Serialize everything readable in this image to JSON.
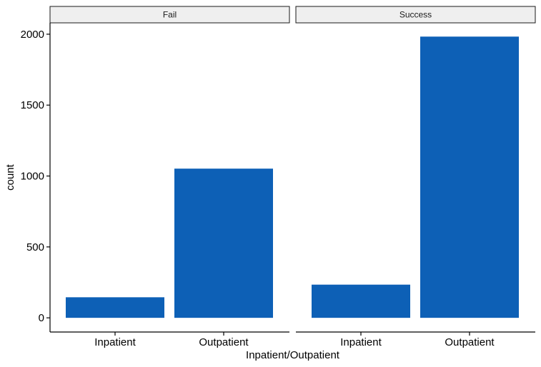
{
  "chart_data": {
    "type": "bar",
    "facets": [
      "Fail",
      "Success"
    ],
    "categories": [
      "Inpatient",
      "Outpatient"
    ],
    "series": [
      {
        "facet": "Fail",
        "values": [
          145,
          1052
        ]
      },
      {
        "facet": "Success",
        "values": [
          234,
          1983
        ]
      }
    ],
    "y_ticks": [
      0,
      500,
      1000,
      1500,
      2000
    ],
    "y_tick_labels": [
      "0",
      "500",
      "1000",
      "1500",
      "2000"
    ],
    "ylim": [
      -100,
      2080
    ],
    "xlabel": "Inpatient/Outpatient",
    "ylabel": "count",
    "bar_color": "#0d60b6",
    "grid": false,
    "legend": "none"
  }
}
